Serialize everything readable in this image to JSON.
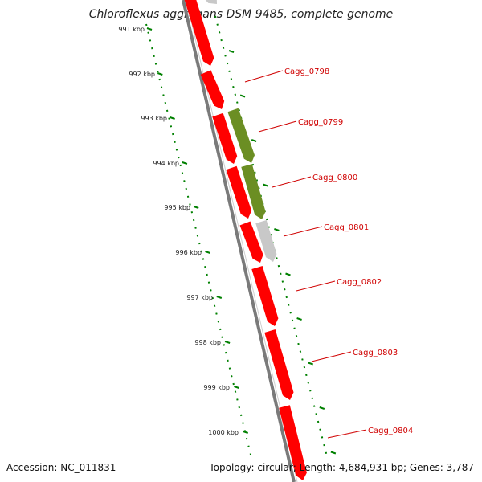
{
  "title": "Chloroflexus aggregans DSM 9485, complete genome",
  "footer": {
    "accession": "Accession: NC_011831",
    "summary": "Topology: circular; Length: 4,684,931 bp; Genes: 3,787"
  },
  "colors": {
    "cds": "#ff0000",
    "other_feature": "#6b8e23",
    "grey_feature": "#c8c8c8",
    "backbone": "#7a7a7a",
    "tick": "#008000",
    "label": "#d00000"
  },
  "ticks": [
    "991 kbp",
    "992 kbp",
    "993 kbp",
    "994 kbp",
    "995 kbp",
    "996 kbp",
    "997 kbp",
    "998 kbp",
    "999 kbp",
    "1000 kbp"
  ],
  "gene_labels": [
    "Cagg_0798",
    "Cagg_0799",
    "Cagg_0800",
    "Cagg_0801",
    "Cagg_0802",
    "Cagg_0803",
    "Cagg_0804"
  ]
}
